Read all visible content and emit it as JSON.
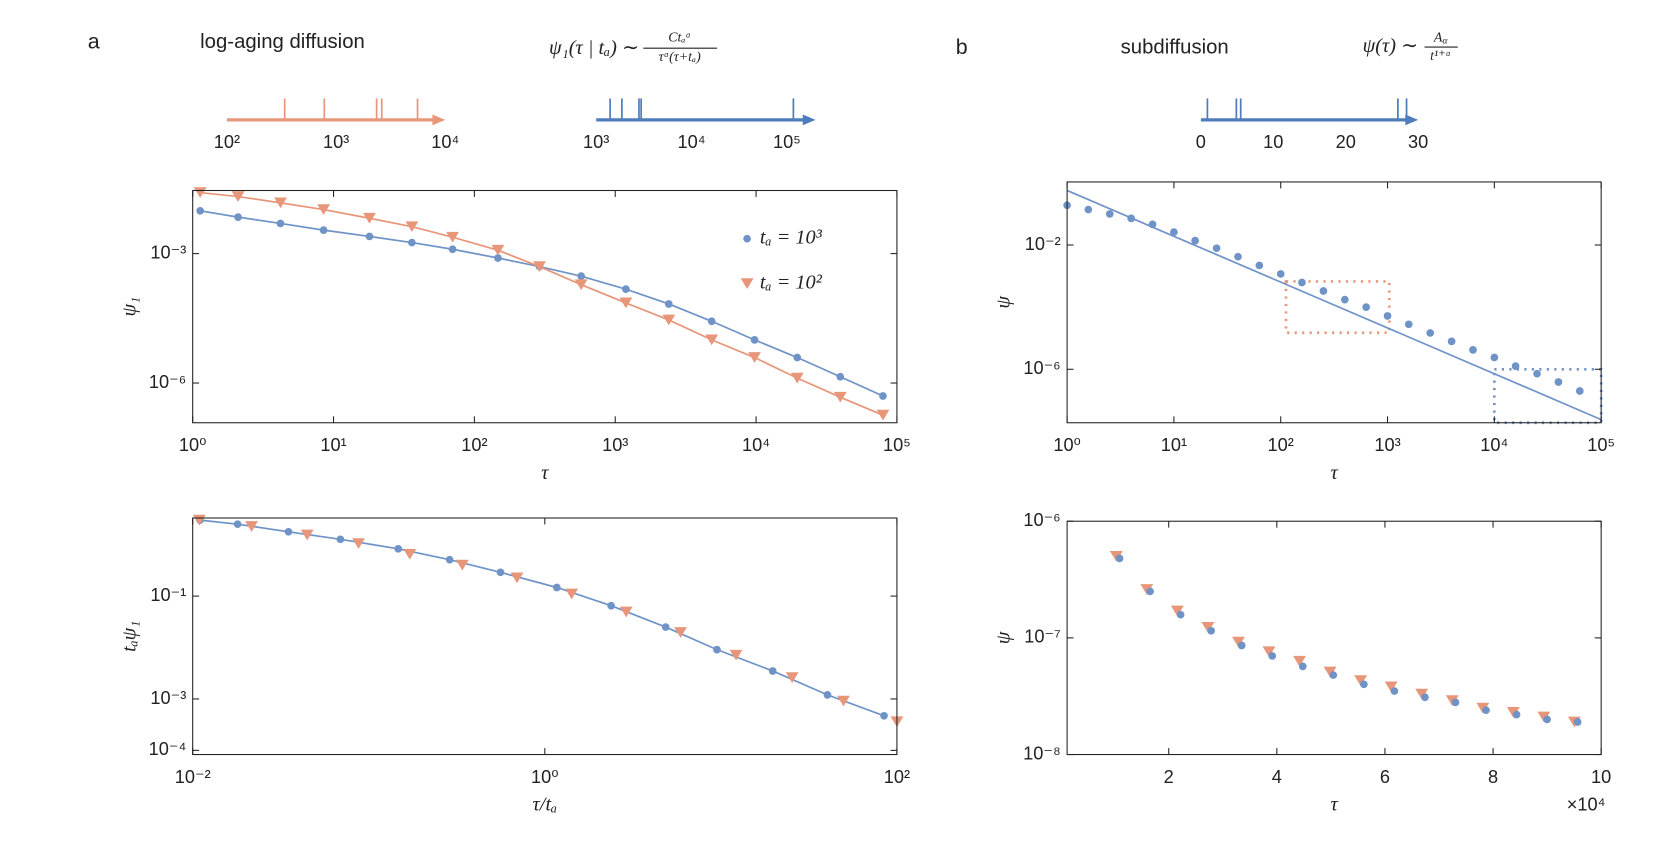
{
  "panels": [
    {
      "label": "a",
      "title": "log-aging diffusion",
      "formula": {
        "lhs": "ψ₁(τ | tₐ) ∼",
        "numerator": "Ctₐᵅ",
        "denominator": "τᵅ(τ+tₐ)"
      }
    },
    {
      "label": "b",
      "title": "subdiffusion",
      "formula": {
        "lhs": "ψ(τ) ∼",
        "numerator_base": "A",
        "numerator_sub": "α",
        "denominator": "t¹⁺ᵅ"
      }
    }
  ],
  "chart_data": [
    {
      "type": "line",
      "xlog": true,
      "ylog": true,
      "xlabel": "τ",
      "ylabel": "ψ₁",
      "legend": "upper right",
      "xlim": [
        1,
        100000
      ],
      "ylim": [
        1.2e-07,
        0.029
      ],
      "xticks": [
        {
          "value": 1,
          "label": "10⁰"
        },
        {
          "value": 10,
          "label": "10¹"
        },
        {
          "value": 100,
          "label": "10²"
        },
        {
          "value": 1000,
          "label": "10³"
        },
        {
          "value": 10000,
          "label": "10⁴"
        },
        {
          "value": 100000,
          "label": "10⁵"
        }
      ],
      "yticks": [
        {
          "value": 0.001,
          "label": "10⁻³"
        },
        {
          "value": 1e-06,
          "label": "10⁻⁶"
        }
      ],
      "x": [
        1.13,
        2.1,
        4.2,
        8.5,
        18,
        36,
        70,
        147,
        290,
        573,
        1190,
        2400,
        4840,
        9750,
        19600,
        39600,
        79600
      ],
      "series": [
        {
          "name": "tₐ = 10³",
          "color": "#6f93c7",
          "marker": "circle",
          "line": true,
          "values": [
            0.0098,
            0.007,
            0.005,
            0.0035,
            0.0025,
            0.0018,
            0.00126,
            0.00079,
            0.0005,
            0.0003,
            0.00015,
            6.8e-05,
            2.7e-05,
            1e-05,
            3.9e-06,
            1.4e-06,
            5e-07
          ]
        },
        {
          "name": "tₐ = 10²",
          "color": "#e8967a",
          "marker": "triangle",
          "line": true,
          "values": [
            0.026,
            0.021,
            0.015,
            0.0105,
            0.0066,
            0.0042,
            0.0024,
            0.0012,
            0.0005,
            0.00019,
            7.2e-05,
            2.9e-05,
            1e-05,
            3.9e-06,
            1.3e-06,
            4.7e-07,
            1.8e-07
          ]
        }
      ]
    },
    {
      "type": "line",
      "xlog": true,
      "ylog": true,
      "xlabel": "τ/tₐ",
      "ylabel": "tₐψ₁",
      "xlim": [
        0.01,
        100
      ],
      "ylim": [
        8.3e-05,
        3.3
      ],
      "xticks": [
        {
          "value": 0.01,
          "label": "10⁻²"
        },
        {
          "value": 1,
          "label": "10⁰"
        },
        {
          "value": 100,
          "label": "10²"
        }
      ],
      "yticks": [
        {
          "value": 0.1,
          "label": "10⁻¹"
        },
        {
          "value": 0.001,
          "label": "10⁻³"
        },
        {
          "value": 0.0001,
          "label": "10⁻⁴"
        }
      ],
      "series": [
        {
          "color": "#6f93c7",
          "marker": "circle",
          "line": true,
          "x": [
            0.011,
            0.018,
            0.035,
            0.069,
            0.147,
            0.288,
            0.56,
            1.17,
            2.38,
            4.86,
            9.5,
            19.7,
            40.3,
            84.5
          ],
          "values": [
            3.0,
            2.5,
            1.78,
            1.27,
            0.83,
            0.51,
            0.29,
            0.147,
            0.065,
            0.025,
            0.0091,
            0.0035,
            0.0012,
            0.00047
          ]
        },
        {
          "color": "#e8967a",
          "marker": "triangle",
          "line": false,
          "x": [
            0.0109,
            0.0216,
            0.0447,
            0.0875,
            0.171,
            0.34,
            0.695,
            1.42,
            2.9,
            5.9,
            12.2,
            25.4,
            49.7,
            100
          ],
          "values": [
            3.0,
            2.26,
            1.54,
            1.05,
            0.65,
            0.4,
            0.226,
            0.11,
            0.049,
            0.0196,
            0.0071,
            0.0026,
            0.00091,
            0.00036
          ]
        }
      ]
    },
    {
      "type": "line",
      "xlog": true,
      "ylog": true,
      "xlabel": "τ",
      "ylabel": "ψ",
      "xlim": [
        1,
        100000
      ],
      "ylim": [
        1.9e-08,
        1.07
      ],
      "xticks": [
        {
          "value": 1,
          "label": "10⁰"
        },
        {
          "value": 10,
          "label": "10¹"
        },
        {
          "value": 100,
          "label": "10²"
        },
        {
          "value": 1000,
          "label": "10³"
        },
        {
          "value": 10000,
          "label": "10⁴"
        },
        {
          "value": 100000,
          "label": "10⁵"
        }
      ],
      "yticks": [
        {
          "value": 0.01,
          "label": "10⁻²"
        },
        {
          "value": 1e-06,
          "label": "10⁻⁶"
        }
      ],
      "series": [
        {
          "color": "#6f93c7",
          "marker": "circle",
          "line": false,
          "x": [
            1,
            1.58,
            2.51,
            3.98,
            6.31,
            10,
            15.8,
            25.1,
            39.8,
            63.1,
            100,
            158,
            251,
            398,
            631,
            1000,
            1580,
            2510,
            3980,
            6310,
            10000,
            15800,
            25100,
            39800,
            63100
          ],
          "values": [
            0.19,
            0.138,
            0.1,
            0.072,
            0.046,
            0.026,
            0.0138,
            0.0079,
            0.0042,
            0.0022,
            0.00117,
            0.00062,
            0.00033,
            0.000174,
            0.0001,
            5.2e-05,
            2.8e-05,
            1.48e-05,
            7.9e-06,
            4.2e-06,
            2.4e-06,
            1.26e-06,
            7.2e-07,
            3.9e-07,
            2e-07
          ]
        },
        {
          "color": "#6f93c7",
          "marker": "none",
          "line": true,
          "x": [
            1,
            100000
          ],
          "values": [
            0.57,
            2.4e-08
          ]
        }
      ],
      "boxes": [
        {
          "color": "#e8967a",
          "x": [
            112,
            1040
          ],
          "y": [
            1.5e-05,
            0.00067
          ]
        },
        {
          "color": "#6f93c7",
          "x": [
            10000,
            100000
          ],
          "y": [
            1.9e-08,
            1e-06
          ]
        }
      ]
    },
    {
      "type": "scatter",
      "xlog": false,
      "ylog": true,
      "xlabel": "τ",
      "ylabel": "ψ",
      "x_multiplier": "×10⁴",
      "xlim": [
        1200,
        100000
      ],
      "ylim": [
        1e-08,
        1e-06
      ],
      "xticks": [
        {
          "value": 20000,
          "label": "2"
        },
        {
          "value": 40000,
          "label": "4"
        },
        {
          "value": 60000,
          "label": "6"
        },
        {
          "value": 80000,
          "label": "8"
        },
        {
          "value": 100000,
          "label": "10"
        }
      ],
      "yticks": [
        {
          "value": 1e-06,
          "label": "10⁻⁶"
        },
        {
          "value": 1e-07,
          "label": "10⁻⁷"
        },
        {
          "value": 1e-08,
          "label": "10⁻⁸"
        }
      ],
      "series": [
        {
          "color": "#e8967a",
          "marker": "triangle",
          "x": [
            10300,
            15950,
            21600,
            27250,
            32900,
            38550,
            44200,
            49850,
            55500,
            61150,
            66800,
            72450,
            78100,
            83750,
            89400,
            95050
          ],
          "values": [
            5e-07,
            2.6e-07,
            1.7e-07,
            1.23e-07,
            9.2e-08,
            7.6e-08,
            6.3e-08,
            5.1e-08,
            4.3e-08,
            3.8e-08,
            3.3e-08,
            2.9e-08,
            2.5e-08,
            2.3e-08,
            2.1e-08,
            1.9e-08
          ]
        },
        {
          "color": "#6f93c7",
          "marker": "circle",
          "x": [
            10900,
            16550,
            22200,
            27850,
            33500,
            39150,
            44800,
            50450,
            56100,
            61750,
            67400,
            73050,
            78700,
            84350,
            90000,
            95650
          ],
          "values": [
            4.8e-07,
            2.5e-07,
            1.58e-07,
            1.15e-07,
            8.6e-08,
            7e-08,
            5.7e-08,
            4.8e-08,
            4e-08,
            3.5e-08,
            3.1e-08,
            2.8e-08,
            2.4e-08,
            2.2e-08,
            2e-08,
            1.9e-08
          ]
        }
      ]
    },
    {
      "type": "timeline",
      "xlog": true,
      "color": "#e8977a",
      "xlim": [
        100,
        10000
      ],
      "xticks": [
        {
          "value": 100,
          "label": "10²"
        },
        {
          "value": 1000,
          "label": "10³"
        },
        {
          "value": 10000,
          "label": "10⁴"
        }
      ],
      "events": [
        338,
        780,
        2350,
        2620,
        5570
      ]
    },
    {
      "type": "timeline",
      "xlog": true,
      "color": "#4f7dbb",
      "xlim": [
        1000,
        200000
      ],
      "xticks": [
        {
          "value": 1000,
          "label": "10³"
        },
        {
          "value": 10000,
          "label": "10⁴"
        },
        {
          "value": 100000,
          "label": "10⁵"
        }
      ],
      "events": [
        1400,
        1860,
        2810,
        2960,
        117000
      ]
    },
    {
      "type": "timeline",
      "xlog": false,
      "color": "#4f7dbb",
      "xlim": [
        0,
        30
      ],
      "xticks": [
        0,
        10,
        20,
        30
      ],
      "events": [
        0.9,
        4.9,
        5.5,
        27.2,
        28.4
      ]
    }
  ]
}
